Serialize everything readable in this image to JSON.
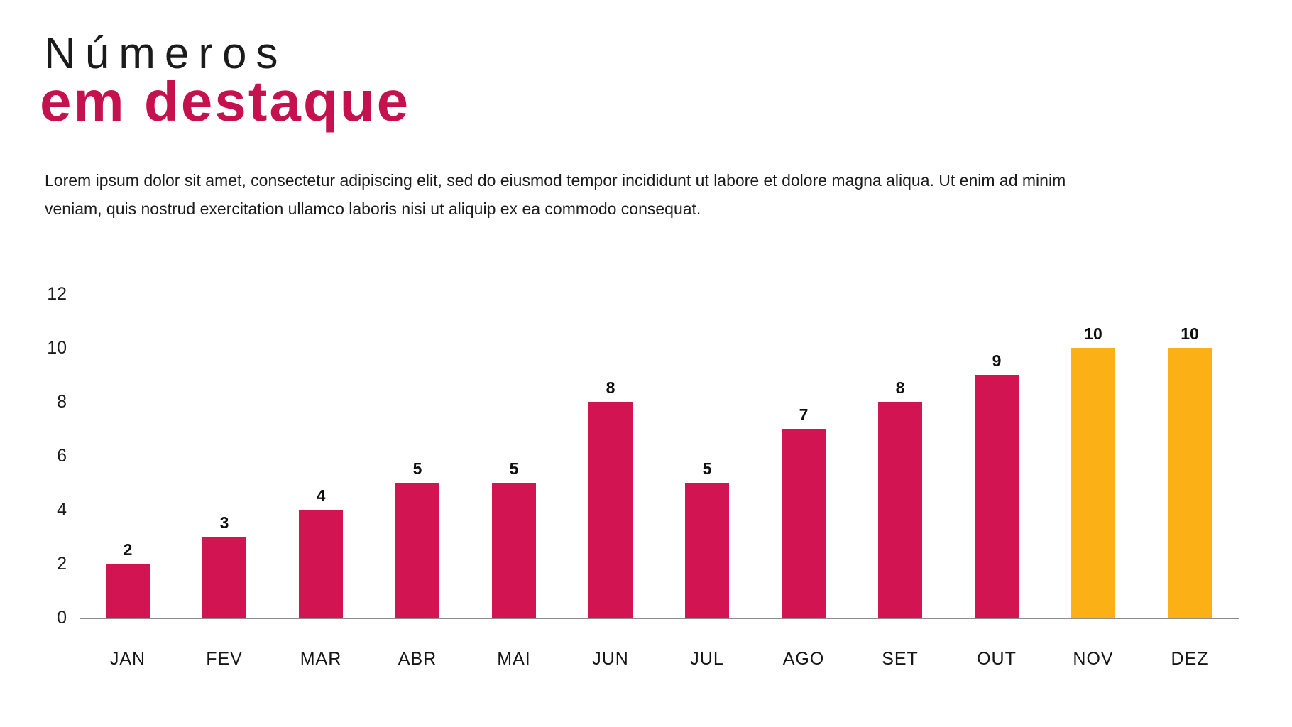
{
  "title": {
    "line1": "Números",
    "line2": "em destaque"
  },
  "paragraph": {
    "line1": "Lorem ipsum dolor sit amet, consectetur adipiscing elit, sed do eiusmod tempor incididunt ut labore et dolore magna aliqua. Ut enim ad minim",
    "line2": "veniam, quis nostrud exercitation ullamco laboris nisi ut aliquip ex ea commodo consequat."
  },
  "colors": {
    "title_accent": "#c5114e",
    "bar_default": "#d21453",
    "bar_highlight": "#fbb116",
    "axis_line": "#8d8d8d",
    "text": "#1b1b1b"
  },
  "chart_data": {
    "type": "bar",
    "title": "",
    "xlabel": "",
    "ylabel": "",
    "categories": [
      "JAN",
      "FEV",
      "MAR",
      "ABR",
      "MAI",
      "JUN",
      "JUL",
      "AGO",
      "SET",
      "OUT",
      "NOV",
      "DEZ"
    ],
    "values": [
      2,
      3,
      4,
      5,
      5,
      8,
      5,
      7,
      8,
      9,
      10,
      10
    ],
    "highlight_categories": [
      "NOV",
      "DEZ"
    ],
    "value_labels_shown": true,
    "y_ticks": [
      0,
      2,
      4,
      6,
      8,
      10,
      12
    ],
    "ylim": [
      0,
      12
    ],
    "grid": false,
    "legend": false
  }
}
